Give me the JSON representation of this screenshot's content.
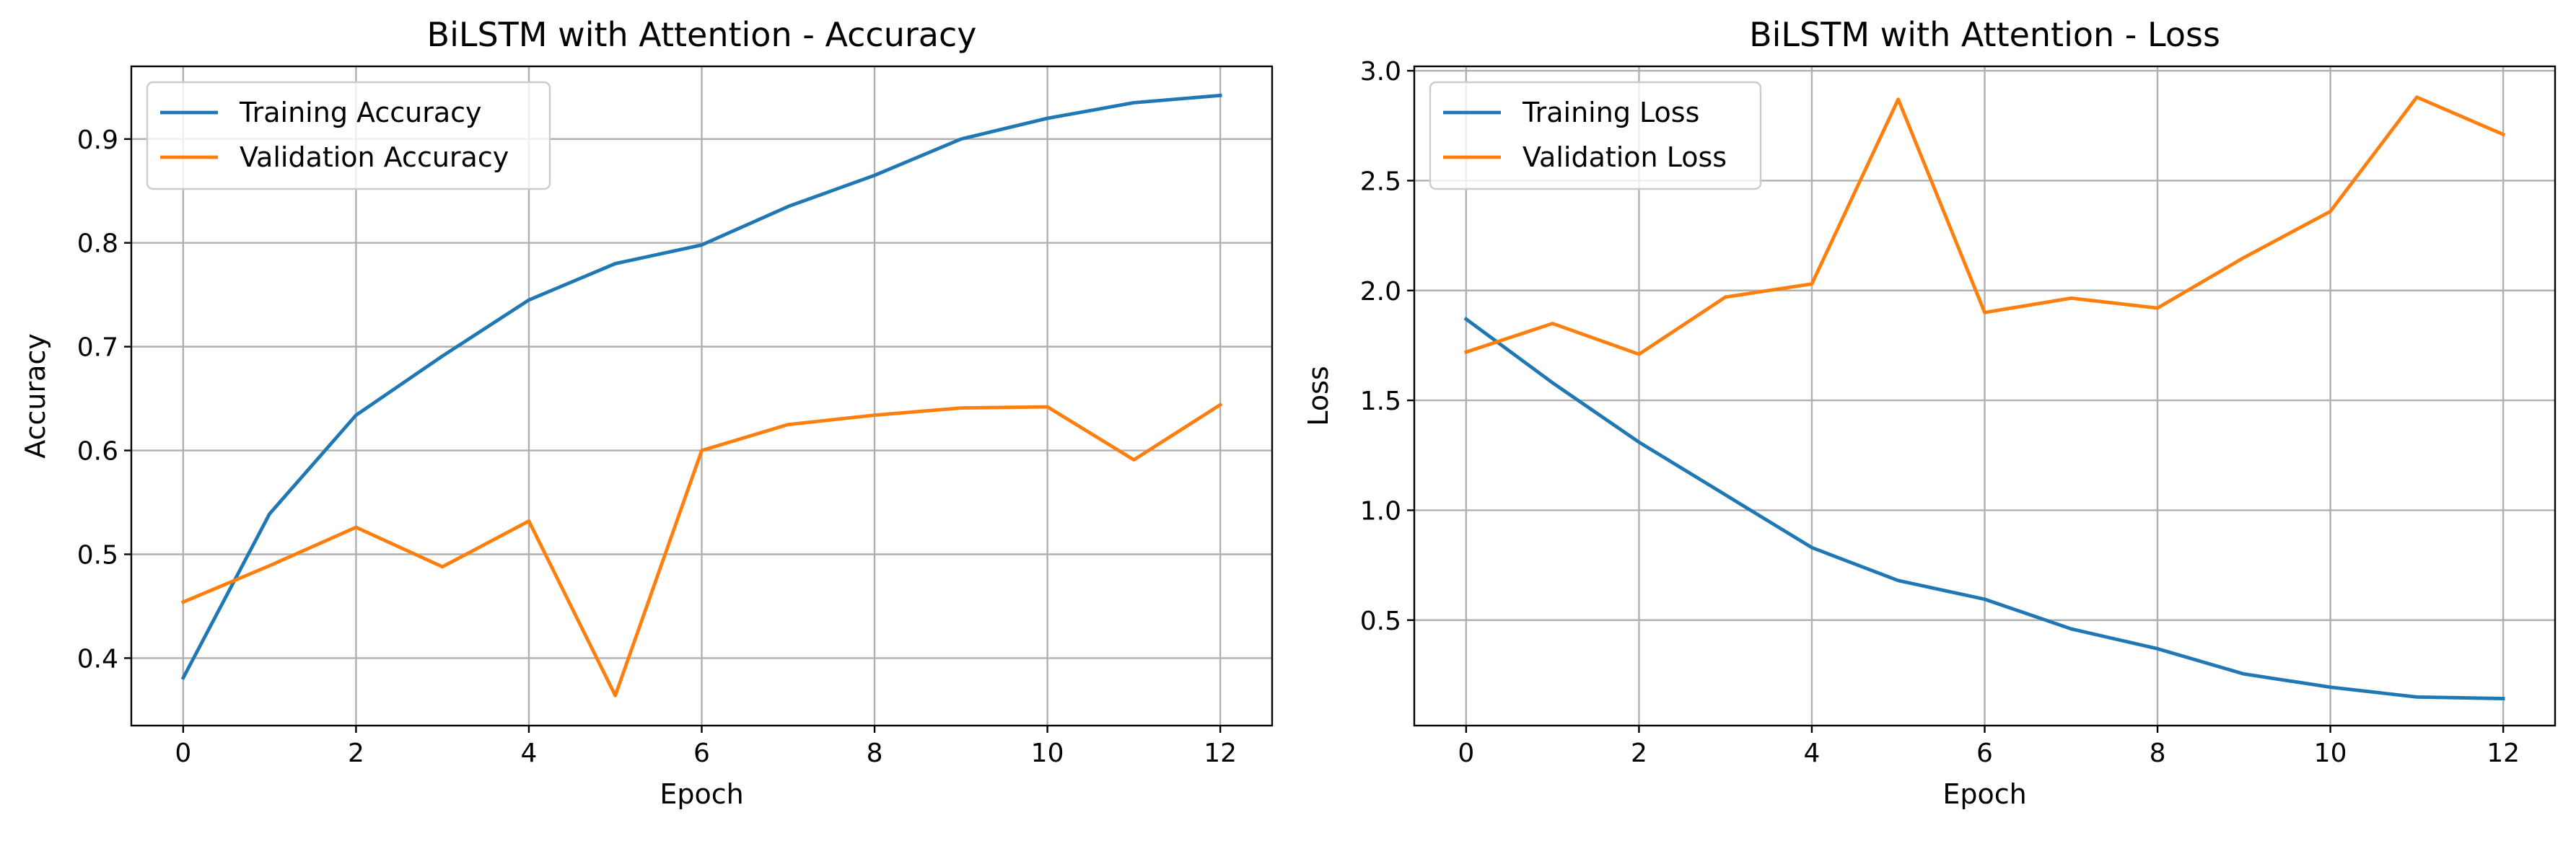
{
  "chart_data": [
    {
      "type": "line",
      "title": "BiLSTM with Attention - Accuracy",
      "xlabel": "Epoch",
      "ylabel": "Accuracy",
      "xlim": [
        -0.6,
        12.6
      ],
      "ylim": [
        0.335,
        0.97
      ],
      "xticks": [
        0,
        2,
        4,
        6,
        8,
        10,
        12
      ],
      "yticks": [
        0.4,
        0.5,
        0.6,
        0.7,
        0.8,
        0.9
      ],
      "grid": true,
      "legend_position": "top-left",
      "x": [
        0,
        1,
        2,
        3,
        4,
        5,
        6,
        7,
        8,
        9,
        10,
        11,
        12
      ],
      "series": [
        {
          "name": "Training Accuracy",
          "color": "#1f77b4",
          "values": [
            0.381,
            0.539,
            0.634,
            0.691,
            0.745,
            0.78,
            0.798,
            0.835,
            0.865,
            0.9,
            0.92,
            0.935,
            0.942
          ]
        },
        {
          "name": "Validation Accuracy",
          "color": "#ff7f0e",
          "values": [
            0.454,
            0.489,
            0.526,
            0.488,
            0.532,
            0.364,
            0.6,
            0.625,
            0.634,
            0.641,
            0.642,
            0.591,
            0.644
          ]
        }
      ]
    },
    {
      "type": "line",
      "title": "BiLSTM with Attention - Loss",
      "xlabel": "Epoch",
      "ylabel": "Loss",
      "xlim": [
        -0.6,
        12.6
      ],
      "ylim": [
        0.02,
        3.02
      ],
      "xticks": [
        0,
        2,
        4,
        6,
        8,
        10,
        12
      ],
      "yticks": [
        0.5,
        1.0,
        1.5,
        2.0,
        2.5,
        3.0
      ],
      "grid": true,
      "legend_position": "top-left",
      "x": [
        0,
        1,
        2,
        3,
        4,
        5,
        6,
        7,
        8,
        9,
        10,
        11,
        12
      ],
      "series": [
        {
          "name": "Training Loss",
          "color": "#1f77b4",
          "values": [
            1.87,
            1.58,
            1.31,
            1.07,
            0.83,
            0.68,
            0.595,
            0.46,
            0.37,
            0.255,
            0.195,
            0.15,
            0.143
          ]
        },
        {
          "name": "Validation Loss",
          "color": "#ff7f0e",
          "values": [
            1.72,
            1.85,
            1.71,
            1.97,
            2.03,
            2.87,
            1.9,
            1.965,
            1.92,
            2.15,
            2.36,
            2.88,
            2.71
          ]
        }
      ]
    }
  ]
}
